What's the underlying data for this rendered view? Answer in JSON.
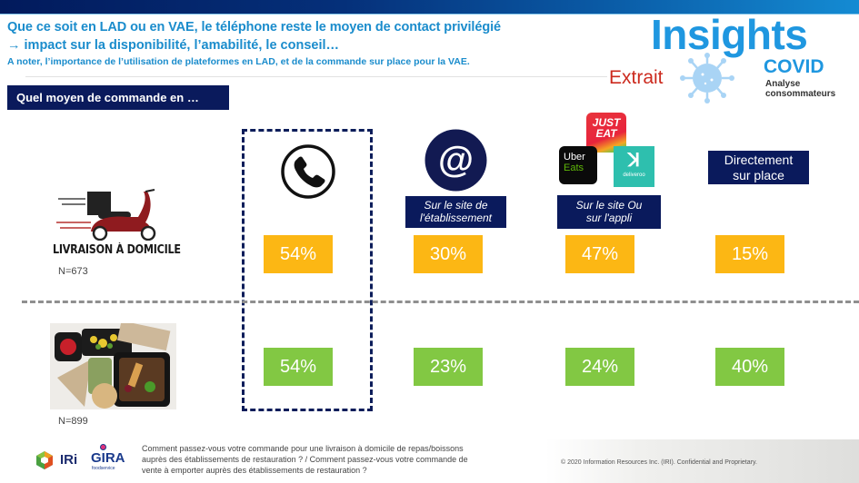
{
  "header": {
    "headline_1": "Que ce soit en LAD ou en VAE, le téléphone reste le moyen de contact privilégié",
    "headline_2": "→ impact sur la disponibilité, l’amabilité, le conseil…",
    "subline": "A noter, l’importance de l’utilisation de plateformes en LAD, et de la commande sur place pour la VAE."
  },
  "brand": {
    "insights": "Insights",
    "covid": "COVID",
    "analyse_1": "Analyse",
    "analyse_2": "consommateurs",
    "extrait": "Extrait",
    "virus_icon": "virus-icon"
  },
  "section_label": "Quel moyen de commande en …",
  "categories": [
    {
      "key": "phone",
      "icon": "phone-icon",
      "label": ""
    },
    {
      "key": "site",
      "icon": "at-sign-icon",
      "label_1": "Sur le site de",
      "label_2": "l'établissement"
    },
    {
      "key": "appli",
      "icons": [
        "just-eat-logo",
        "uber-eats-logo",
        "deliveroo-logo"
      ],
      "label_1": "Sur le site Ou",
      "label_2": "sur l'appli"
    },
    {
      "key": "place",
      "label_1": "Directement",
      "label_2": "sur place"
    }
  ],
  "logos": {
    "just_eat_1": "JUST",
    "just_eat_2": "EAT",
    "uber": "Uber",
    "eats": "Eats",
    "deliveroo": "deliveroo",
    "deliveroo_mark": "ꓘ"
  },
  "rows": [
    {
      "name": "Livraison à domicile",
      "label": "LIVRAISON À DOMICILE",
      "n": "N=673",
      "color": "#fcb714"
    },
    {
      "name": "Vente à emporter",
      "label": "",
      "n": "N=899",
      "color": "#82c843"
    }
  ],
  "chart_data": {
    "type": "table",
    "title": "Quel moyen de commande en …",
    "categories": [
      "Téléphone",
      "Sur le site de l'établissement",
      "Sur le site Ou sur l'appli",
      "Directement sur place"
    ],
    "series": [
      {
        "name": "Livraison à domicile (N=673)",
        "values": [
          54,
          30,
          47,
          15
        ],
        "labels": [
          "54%",
          "30%",
          "47%",
          "15%"
        ],
        "color": "#fcb714"
      },
      {
        "name": "Vente à emporter (N=899)",
        "values": [
          54,
          23,
          24,
          40
        ],
        "labels": [
          "54%",
          "23%",
          "24%",
          "40%"
        ],
        "color": "#82c843"
      }
    ],
    "highlight": "Téléphone",
    "unit": "%"
  },
  "footer": {
    "question_1": "Comment  passez-vous votre commande pour une livraison à domicile de repas/boissons",
    "question_2": "auprès des établissements de restauration ? / Comment  passez-vous votre commande de",
    "question_3": "vente à emporter auprès des établissements de restauration ?",
    "copyright": "© 2020 Information Resources Inc. (IRI). Confidential and Proprietary.",
    "iri": "IRi",
    "gira": "GIRA",
    "gira_sub": "foodservice"
  },
  "colors": {
    "navy": "#0a1a5c",
    "headline_blue": "#1a8ccc",
    "lad_yellow": "#fcb714",
    "vae_green": "#82c843",
    "extrait_red": "#cc2a1e"
  }
}
